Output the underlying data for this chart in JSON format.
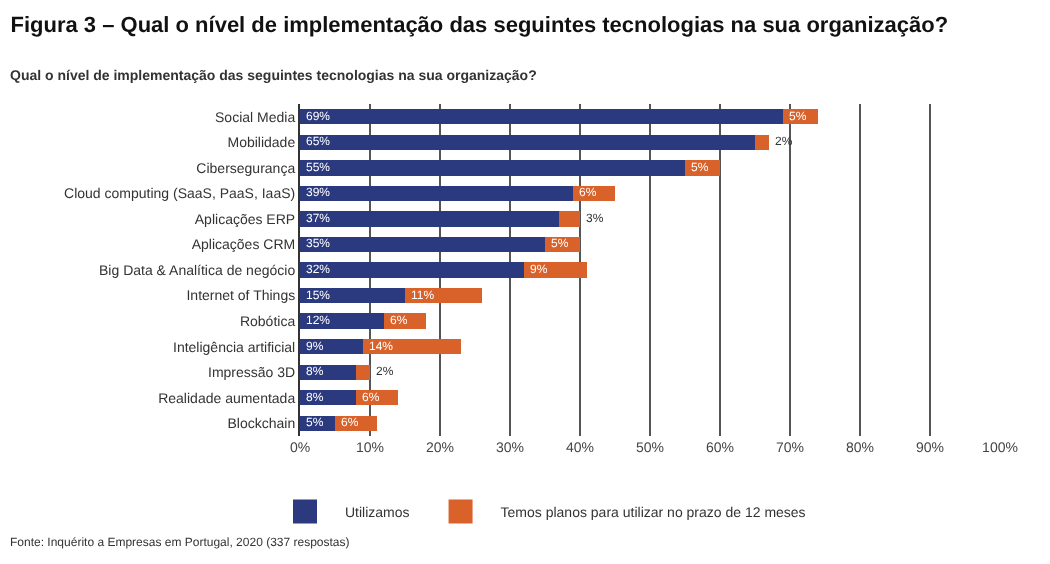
{
  "chart_data": {
    "type": "bar",
    "orientation": "horizontal",
    "stacked": true,
    "title": "Figura 3 – Qual o nível de implementação das seguintes tecnologias na sua organização?",
    "subtitle": "Qual o nível de implementação das seguintes tecnologias na sua organização?",
    "categories": [
      "Social Media",
      "Mobilidade",
      "Cibersegurança",
      "Cloud computing (SaaS, PaaS, IaaS)",
      "Aplicações ERP",
      "Aplicações CRM",
      "Big Data & Analítica de negócio",
      "Internet of Things",
      "Robótica",
      "Inteligência artificial",
      "Impressão 3D",
      "Realidade aumentada",
      "Blockchain"
    ],
    "series": [
      {
        "name": "Utilizamos",
        "color": "#2b3a7e",
        "values": [
          69,
          65,
          55,
          39,
          37,
          35,
          32,
          15,
          12,
          9,
          8,
          8,
          5
        ],
        "value_labels": [
          "69%",
          "65%",
          "55%",
          "39%",
          "37%",
          "35%",
          "32%",
          "15%",
          "12%",
          "9%",
          "8%",
          "8%",
          "5%"
        ]
      },
      {
        "name": "Temos planos para utilizar no prazo de 12 meses",
        "color": "#d9622b",
        "values": [
          5,
          2,
          5,
          6,
          3,
          5,
          9,
          11,
          6,
          14,
          2,
          6,
          6
        ],
        "value_labels": [
          "5%",
          "2%",
          "5%",
          "6%",
          "3%",
          "5%",
          "9%",
          "11%",
          "6%",
          "14%",
          "2%",
          "6%",
          "6%"
        ]
      }
    ],
    "xlim": [
      0,
      100
    ],
    "xticks": [
      {
        "value": 0,
        "label": "0%"
      },
      {
        "value": 10,
        "label": "10%"
      },
      {
        "value": 20,
        "label": "20%"
      },
      {
        "value": 30,
        "label": "30%"
      },
      {
        "value": 40,
        "label": "40%"
      },
      {
        "value": 50,
        "label": "50%"
      },
      {
        "value": 60,
        "label": "60%"
      },
      {
        "value": 70,
        "label": "70%"
      },
      {
        "value": 80,
        "label": "80%"
      },
      {
        "value": 90,
        "label": "90%"
      },
      {
        "value": 100,
        "label": "100%"
      }
    ],
    "grid": "x",
    "legend": "bottom",
    "annotations": [
      "Fonte: Inquérito a Empresas em Portugal, 2020 (337 respostas)"
    ]
  }
}
